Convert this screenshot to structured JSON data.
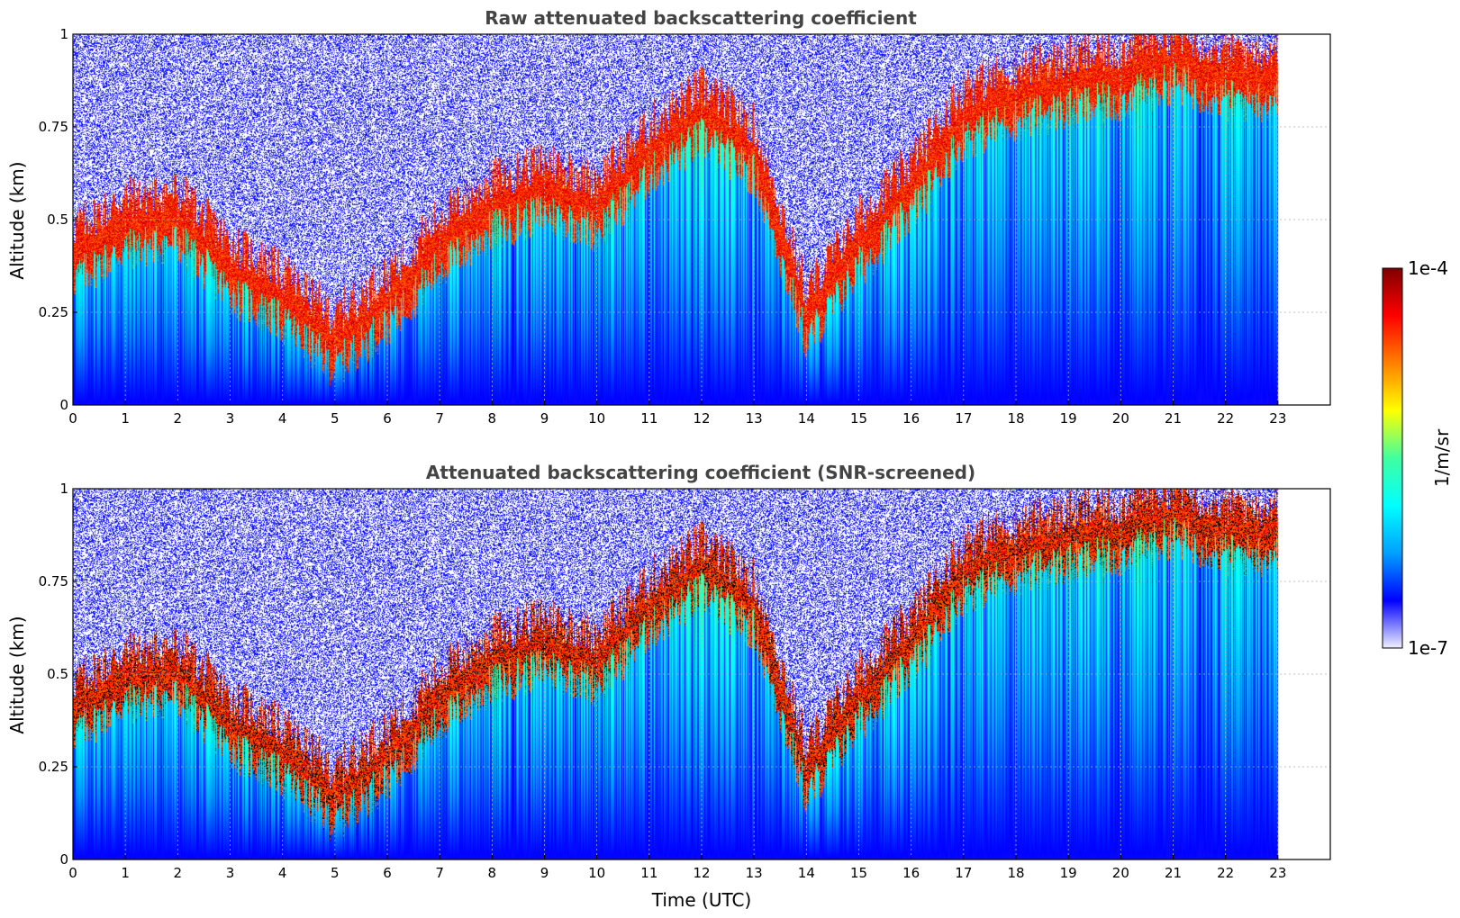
{
  "colors": {
    "colormap": [
      "#f0f0ff",
      "#0000ff",
      "#00a0ff",
      "#00ffff",
      "#40ffa0",
      "#ffff00",
      "#ff8000",
      "#ff0000",
      "#800000"
    ],
    "saturated": "#000000",
    "grid": "#b0b0b0"
  },
  "colorbar": {
    "label": "1/m/sr",
    "min_label": "1e-7",
    "max_label": "1e-4",
    "min": 1e-07,
    "max": 0.0001,
    "scale": "log"
  },
  "xlabel": "Time (UTC)",
  "chart_data": [
    {
      "type": "heatmap",
      "title": "Raw attenuated backscattering coefficient",
      "xlabel": "",
      "ylabel": "Altitude (km)",
      "xlim": [
        0,
        24
      ],
      "ylim": [
        0,
        1
      ],
      "xticks": [
        "0",
        "1",
        "2",
        "3",
        "4",
        "5",
        "6",
        "7",
        "8",
        "9",
        "10",
        "11",
        "12",
        "13",
        "14",
        "15",
        "16",
        "17",
        "18",
        "19",
        "20",
        "21",
        "22",
        "23"
      ],
      "yticks": [
        "0",
        "0.25",
        "0.5",
        "0.75",
        "1"
      ],
      "grid": true,
      "data_end_hour": 23,
      "screened": false,
      "layer_top_km": [
        [
          0,
          0.42
        ],
        [
          1,
          0.5
        ],
        [
          2,
          0.52
        ],
        [
          3,
          0.38
        ],
        [
          4,
          0.3
        ],
        [
          5,
          0.18
        ],
        [
          6,
          0.3
        ],
        [
          7,
          0.45
        ],
        [
          8,
          0.55
        ],
        [
          9,
          0.6
        ],
        [
          10,
          0.55
        ],
        [
          11,
          0.7
        ],
        [
          12,
          0.8
        ],
        [
          13,
          0.7
        ],
        [
          14,
          0.25
        ],
        [
          15,
          0.45
        ],
        [
          16,
          0.6
        ],
        [
          17,
          0.8
        ],
        [
          18,
          0.85
        ],
        [
          19,
          0.88
        ],
        [
          20,
          0.9
        ],
        [
          21,
          0.95
        ],
        [
          22,
          0.9
        ],
        [
          23,
          0.9
        ]
      ]
    },
    {
      "type": "heatmap",
      "title": "Attenuated backscattering coefficient (SNR-screened)",
      "xlabel": "Time (UTC)",
      "ylabel": "Altitude (km)",
      "xlim": [
        0,
        24
      ],
      "ylim": [
        0,
        1
      ],
      "xticks": [
        "0",
        "1",
        "2",
        "3",
        "4",
        "5",
        "6",
        "7",
        "8",
        "9",
        "10",
        "11",
        "12",
        "13",
        "14",
        "15",
        "16",
        "17",
        "18",
        "19",
        "20",
        "21",
        "22",
        "23"
      ],
      "yticks": [
        "0",
        "0.25",
        "0.5",
        "0.75",
        "1"
      ],
      "grid": true,
      "data_end_hour": 23,
      "screened": true,
      "layer_top_km": [
        [
          0,
          0.42
        ],
        [
          1,
          0.5
        ],
        [
          2,
          0.52
        ],
        [
          3,
          0.38
        ],
        [
          4,
          0.3
        ],
        [
          5,
          0.18
        ],
        [
          6,
          0.3
        ],
        [
          7,
          0.45
        ],
        [
          8,
          0.55
        ],
        [
          9,
          0.6
        ],
        [
          10,
          0.55
        ],
        [
          11,
          0.7
        ],
        [
          12,
          0.8
        ],
        [
          13,
          0.7
        ],
        [
          14,
          0.25
        ],
        [
          15,
          0.45
        ],
        [
          16,
          0.6
        ],
        [
          17,
          0.8
        ],
        [
          18,
          0.85
        ],
        [
          19,
          0.88
        ],
        [
          20,
          0.9
        ],
        [
          21,
          0.95
        ],
        [
          22,
          0.9
        ],
        [
          23,
          0.9
        ]
      ]
    }
  ]
}
